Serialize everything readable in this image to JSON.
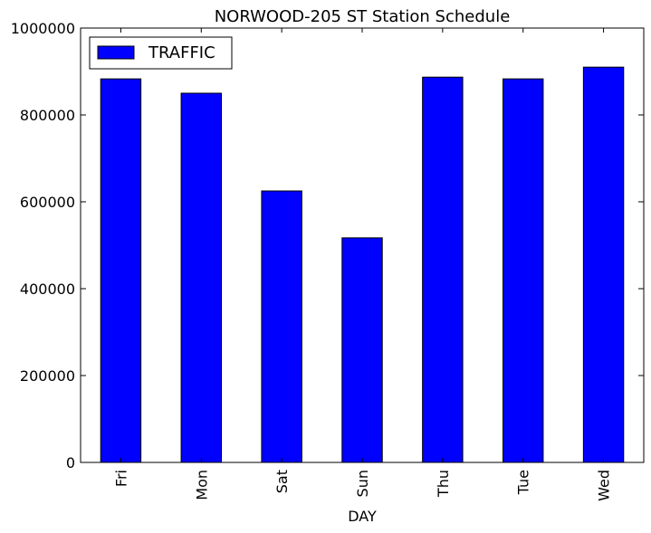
{
  "chart_data": {
    "type": "bar",
    "title": "NORWOOD-205 ST Station Schedule",
    "xlabel": "DAY",
    "ylabel": "",
    "categories": [
      "Fri",
      "Mon",
      "Sat",
      "Sun",
      "Thu",
      "Tue",
      "Wed"
    ],
    "series": [
      {
        "name": "TRAFFIC",
        "color": "#0000ff",
        "values": [
          883000,
          850000,
          625000,
          517000,
          887000,
          883000,
          910000
        ]
      }
    ],
    "ylim": [
      0,
      1000000
    ],
    "yticks": [
      "0",
      "200000",
      "400000",
      "600000",
      "800000",
      "1000000"
    ],
    "grid": false,
    "legend_position": "top-left"
  }
}
